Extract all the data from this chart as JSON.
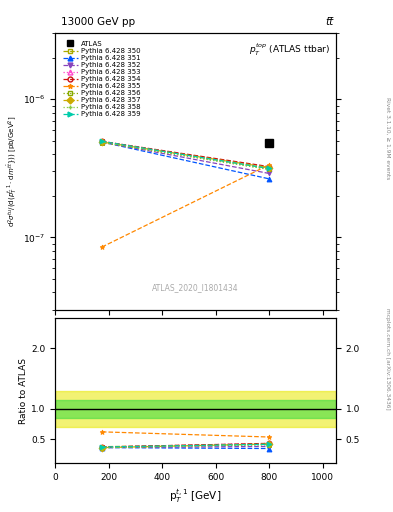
{
  "title_top": "13000 GeV pp",
  "title_right": "tt̅",
  "main_title": "p$_T^{top}$ (ATLAS ttbar)",
  "xlabel": "p$_T^{t,1}$ [GeV]",
  "ylabel_ratio": "Ratio to ATLAS",
  "watermark": "ATLAS_2020_I1801434",
  "rivet_label": "Rivet 3.1.10, ≥ 1.9M events",
  "arxiv_label": "mcplots.cern.ch [arXiv:1306.3436]",
  "atlas_x_single": 800,
  "atlas_y_single_val": 4.8e-07,
  "data_x": [
    175,
    800
  ],
  "series": [
    {
      "label": "Pythia 6.428 350",
      "color": "#aaaa00",
      "linestyle": "--",
      "marker": "s",
      "mfc": "none",
      "y": [
        4.95e-07,
        3.15e-07
      ]
    },
    {
      "label": "Pythia 6.428 351",
      "color": "#0055ff",
      "linestyle": "--",
      "marker": "^",
      "mfc": "#0055ff",
      "y": [
        4.9e-07,
        2.65e-07
      ]
    },
    {
      "label": "Pythia 6.428 352",
      "color": "#8844bb",
      "linestyle": "--",
      "marker": "v",
      "mfc": "#8844bb",
      "y": [
        4.9e-07,
        2.9e-07
      ]
    },
    {
      "label": "Pythia 6.428 353",
      "color": "#ff44cc",
      "linestyle": ":",
      "marker": "^",
      "mfc": "none",
      "y": [
        4.95e-07,
        3.2e-07
      ]
    },
    {
      "label": "Pythia 6.428 354",
      "color": "#cc1111",
      "linestyle": "--",
      "marker": "o",
      "mfc": "none",
      "y": [
        4.95e-07,
        3.25e-07
      ]
    },
    {
      "label": "Pythia 6.428 355",
      "color": "#ff8800",
      "linestyle": "--",
      "marker": "*",
      "mfc": "#ff8800",
      "y": [
        8.5e-08,
        3.35e-07
      ]
    },
    {
      "label": "Pythia 6.428 356",
      "color": "#88aa00",
      "linestyle": ":",
      "marker": "s",
      "mfc": "none",
      "y": [
        4.85e-07,
        3.1e-07
      ]
    },
    {
      "label": "Pythia 6.428 357",
      "color": "#ccaa00",
      "linestyle": "-.",
      "marker": "D",
      "mfc": "#ccaa00",
      "y": [
        4.9e-07,
        3.2e-07
      ]
    },
    {
      "label": "Pythia 6.428 358",
      "color": "#88cc44",
      "linestyle": ":",
      "marker": "+",
      "mfc": "#88cc44",
      "y": [
        4.9e-07,
        3.1e-07
      ]
    },
    {
      "label": "Pythia 6.428 359",
      "color": "#00ccaa",
      "linestyle": "--",
      "marker": ">",
      "mfc": "#00ccaa",
      "y": [
        4.95e-07,
        3.15e-07
      ]
    }
  ],
  "ratio_series": [
    {
      "label": "Pythia 6.428 350",
      "color": "#aaaa00",
      "linestyle": "--",
      "marker": "s",
      "mfc": "none",
      "y": [
        0.375,
        0.42
      ]
    },
    {
      "label": "Pythia 6.428 351",
      "color": "#0055ff",
      "linestyle": "--",
      "marker": "^",
      "mfc": "#0055ff",
      "y": [
        0.36,
        0.345
      ]
    },
    {
      "label": "Pythia 6.428 352",
      "color": "#8844bb",
      "linestyle": "--",
      "marker": "v",
      "mfc": "#8844bb",
      "y": [
        0.36,
        0.38
      ]
    },
    {
      "label": "Pythia 6.428 353",
      "color": "#ff44cc",
      "linestyle": ":",
      "marker": "^",
      "mfc": "none",
      "y": [
        0.37,
        0.43
      ]
    },
    {
      "label": "Pythia 6.428 354",
      "color": "#cc1111",
      "linestyle": "--",
      "marker": "o",
      "mfc": "none",
      "y": [
        0.37,
        0.43
      ]
    },
    {
      "label": "Pythia 6.428 355",
      "color": "#ff8800",
      "linestyle": "--",
      "marker": "*",
      "mfc": "#ff8800",
      "y": [
        0.62,
        0.535
      ]
    },
    {
      "label": "Pythia 6.428 356",
      "color": "#88aa00",
      "linestyle": ":",
      "marker": "s",
      "mfc": "none",
      "y": [
        0.36,
        0.41
      ]
    },
    {
      "label": "Pythia 6.428 357",
      "color": "#ccaa00",
      "linestyle": "-.",
      "marker": "D",
      "mfc": "#ccaa00",
      "y": [
        0.36,
        0.42
      ]
    },
    {
      "label": "Pythia 6.428 358",
      "color": "#88cc44",
      "linestyle": ":",
      "marker": "+",
      "mfc": "#88cc44",
      "y": [
        0.36,
        0.41
      ]
    },
    {
      "label": "Pythia 6.428 359",
      "color": "#00ccaa",
      "linestyle": "--",
      "marker": ">",
      "mfc": "#00ccaa",
      "y": [
        0.37,
        0.415
      ]
    }
  ],
  "xlim": [
    0,
    1050
  ],
  "ylim_main": [
    3e-08,
    3e-06
  ],
  "ylim_ratio": [
    0.1,
    2.5
  ],
  "ratio_yticks": [
    0.5,
    1.0,
    2.0
  ],
  "green_band": [
    0.85,
    1.15
  ],
  "yellow_band": [
    0.7,
    1.3
  ]
}
